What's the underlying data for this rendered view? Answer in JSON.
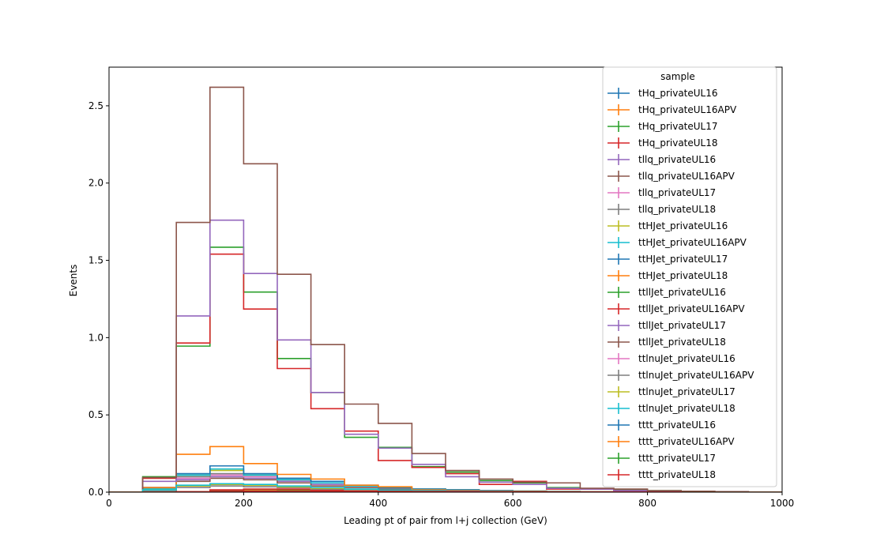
{
  "chart_data": {
    "type": "histogram-step",
    "xlabel": "Leading pt of pair from l+j collection (GeV)",
    "ylabel": "Events",
    "xlim": [
      0,
      1000
    ],
    "ylim": [
      0,
      2.75
    ],
    "xticks": [
      0,
      200,
      400,
      600,
      800,
      1000
    ],
    "xtick_labels": [
      "0",
      "200",
      "400",
      "600",
      "800",
      "1000"
    ],
    "yticks": [
      0,
      0.5,
      1.0,
      1.5,
      2.0,
      2.5
    ],
    "ytick_labels": [
      "0.0",
      "0.5",
      "1.0",
      "1.5",
      "2.0",
      "2.5"
    ],
    "grid": false,
    "legend": {
      "title": "sample",
      "placement": "top-right"
    },
    "bin_edges": [
      0,
      50,
      100,
      150,
      200,
      250,
      300,
      350,
      400,
      450,
      500,
      550,
      600,
      650,
      700,
      750,
      800,
      850,
      900,
      950,
      1000
    ],
    "series": [
      {
        "name": "tHq_privateUL16",
        "color": "#1f77b4",
        "values": [
          0,
          0,
          0,
          0.005,
          0.01,
          0.01,
          0.008,
          0.006,
          0.004,
          0.003,
          0.002,
          0.001,
          0.001,
          0,
          0,
          0,
          0,
          0,
          0,
          0
        ]
      },
      {
        "name": "tHq_privateUL16APV",
        "color": "#ff7f0e",
        "values": [
          0,
          0,
          0,
          0.005,
          0.01,
          0.01,
          0.008,
          0.006,
          0.004,
          0.003,
          0.002,
          0.001,
          0.001,
          0,
          0,
          0,
          0,
          0,
          0,
          0
        ]
      },
      {
        "name": "tHq_privateUL17",
        "color": "#2ca02c",
        "values": [
          0,
          0,
          0,
          0.01,
          0.018,
          0.016,
          0.012,
          0.01,
          0.007,
          0.005,
          0.003,
          0.002,
          0.001,
          0.001,
          0,
          0,
          0,
          0,
          0,
          0
        ]
      },
      {
        "name": "tHq_privateUL18",
        "color": "#d62728",
        "values": [
          0,
          0,
          0,
          0.015,
          0.02,
          0.02,
          0.015,
          0.012,
          0.009,
          0.006,
          0.004,
          0.002,
          0.002,
          0.001,
          0,
          0,
          0,
          0,
          0,
          0
        ]
      },
      {
        "name": "tllq_privateUL16",
        "color": "#9467bd",
        "values": [
          0,
          0.02,
          0.08,
          0.1,
          0.09,
          0.07,
          0.05,
          0.03,
          0.02,
          0.01,
          0.008,
          0.005,
          0.003,
          0.002,
          0.001,
          0,
          0,
          0,
          0,
          0
        ]
      },
      {
        "name": "tllq_privateUL16APV",
        "color": "#8c564b",
        "values": [
          0,
          0.02,
          0.07,
          0.09,
          0.08,
          0.06,
          0.04,
          0.03,
          0.02,
          0.01,
          0.007,
          0.004,
          0.003,
          0.002,
          0.001,
          0,
          0,
          0,
          0,
          0
        ]
      },
      {
        "name": "tllq_privateUL17",
        "color": "#e377c2",
        "values": [
          0,
          0.03,
          0.09,
          0.11,
          0.1,
          0.08,
          0.06,
          0.04,
          0.025,
          0.015,
          0.009,
          0.006,
          0.004,
          0.002,
          0.001,
          0,
          0,
          0,
          0,
          0
        ]
      },
      {
        "name": "tllq_privateUL18",
        "color": "#7f7f7f",
        "values": [
          0,
          0.03,
          0.1,
          0.12,
          0.11,
          0.09,
          0.06,
          0.04,
          0.025,
          0.015,
          0.01,
          0.006,
          0.004,
          0.002,
          0.001,
          0,
          0,
          0,
          0,
          0
        ]
      },
      {
        "name": "ttHJet_privateUL16",
        "color": "#bcbd22",
        "values": [
          0,
          0.02,
          0.11,
          0.14,
          0.11,
          0.08,
          0.06,
          0.04,
          0.03,
          0.02,
          0.015,
          0.01,
          0.007,
          0.004,
          0.003,
          0.002,
          0.001,
          0,
          0,
          0
        ]
      },
      {
        "name": "ttHJet_privateUL16APV",
        "color": "#17becf",
        "values": [
          0,
          0.02,
          0.11,
          0.15,
          0.11,
          0.08,
          0.06,
          0.04,
          0.03,
          0.02,
          0.015,
          0.01,
          0.007,
          0.004,
          0.003,
          0.002,
          0.001,
          0,
          0,
          0
        ]
      },
      {
        "name": "ttHJet_privateUL17",
        "color": "#1f77b4",
        "values": [
          0,
          0.03,
          0.12,
          0.17,
          0.12,
          0.09,
          0.07,
          0.045,
          0.03,
          0.02,
          0.015,
          0.01,
          0.007,
          0.004,
          0.003,
          0.002,
          0.001,
          0,
          0,
          0
        ]
      },
      {
        "name": "ttHJet_privateUL18",
        "color": "#ff7f0e",
        "values": [
          0,
          0.03,
          0.245,
          0.295,
          0.185,
          0.115,
          0.085,
          0.045,
          0.035,
          0.015,
          0.01,
          0.007,
          0.005,
          0.003,
          0.002,
          0.001,
          0.001,
          0,
          0,
          0
        ]
      },
      {
        "name": "ttllJet_privateUL16",
        "color": "#2ca02c",
        "values": [
          0,
          0.1,
          0.945,
          1.585,
          1.295,
          0.865,
          0.645,
          0.355,
          0.29,
          0.165,
          0.13,
          0.075,
          0.06,
          0.03,
          0.02,
          0.015,
          0.01,
          0.005,
          0.003,
          0.001
        ]
      },
      {
        "name": "ttllJet_privateUL16APV",
        "color": "#d62728",
        "values": [
          0,
          0.09,
          0.965,
          1.54,
          1.185,
          0.8,
          0.54,
          0.395,
          0.205,
          0.16,
          0.12,
          0.05,
          0.07,
          0.02,
          0.02,
          0.01,
          0.008,
          0.004,
          0.002,
          0.001
        ]
      },
      {
        "name": "ttllJet_privateUL17",
        "color": "#9467bd",
        "values": [
          0,
          0.07,
          1.14,
          1.76,
          1.415,
          0.985,
          0.645,
          0.375,
          0.285,
          0.18,
          0.1,
          0.065,
          0.05,
          0.025,
          0.02,
          0.01,
          0.008,
          0.004,
          0.002,
          0.001
        ]
      },
      {
        "name": "ttllJet_privateUL18",
        "color": "#8c564b",
        "values": [
          0,
          0.095,
          1.745,
          2.62,
          2.125,
          1.41,
          0.955,
          0.57,
          0.445,
          0.25,
          0.14,
          0.085,
          0.065,
          0.06,
          0.025,
          0.02,
          0.01,
          0.006,
          0.003,
          0.001
        ]
      },
      {
        "name": "ttlnuJet_privateUL16",
        "color": "#e377c2",
        "values": [
          0,
          0.01,
          0.03,
          0.04,
          0.035,
          0.03,
          0.02,
          0.015,
          0.01,
          0.008,
          0.005,
          0.004,
          0.003,
          0.002,
          0.001,
          0,
          0,
          0,
          0,
          0
        ]
      },
      {
        "name": "ttlnuJet_privateUL16APV",
        "color": "#7f7f7f",
        "values": [
          0,
          0.01,
          0.03,
          0.04,
          0.035,
          0.03,
          0.02,
          0.015,
          0.01,
          0.008,
          0.005,
          0.004,
          0.003,
          0.002,
          0.001,
          0,
          0,
          0,
          0,
          0
        ]
      },
      {
        "name": "ttlnuJet_privateUL17",
        "color": "#bcbd22",
        "values": [
          0,
          0.015,
          0.04,
          0.05,
          0.045,
          0.035,
          0.025,
          0.018,
          0.012,
          0.009,
          0.006,
          0.004,
          0.003,
          0.002,
          0.001,
          0,
          0,
          0,
          0,
          0
        ]
      },
      {
        "name": "ttlnuJet_privateUL18",
        "color": "#17becf",
        "values": [
          0,
          0.015,
          0.045,
          0.055,
          0.05,
          0.04,
          0.03,
          0.02,
          0.013,
          0.01,
          0.007,
          0.005,
          0.003,
          0.002,
          0.001,
          0,
          0,
          0,
          0,
          0
        ]
      },
      {
        "name": "tttt_privateUL16",
        "color": "#1f77b4",
        "values": [
          0,
          0,
          0.002,
          0.004,
          0.005,
          0.005,
          0.005,
          0.004,
          0.004,
          0.003,
          0.003,
          0.002,
          0.002,
          0.001,
          0.001,
          0.001,
          0,
          0,
          0,
          0
        ]
      },
      {
        "name": "tttt_privateUL16APV",
        "color": "#ff7f0e",
        "values": [
          0,
          0,
          0.002,
          0.004,
          0.005,
          0.005,
          0.005,
          0.004,
          0.004,
          0.003,
          0.003,
          0.002,
          0.002,
          0.001,
          0.001,
          0.001,
          0,
          0,
          0,
          0
        ]
      },
      {
        "name": "tttt_privateUL17",
        "color": "#2ca02c",
        "values": [
          0,
          0,
          0.002,
          0.004,
          0.006,
          0.006,
          0.006,
          0.005,
          0.005,
          0.004,
          0.003,
          0.003,
          0.002,
          0.002,
          0.001,
          0.001,
          0.001,
          0,
          0,
          0
        ]
      },
      {
        "name": "tttt_privateUL18",
        "color": "#d62728",
        "values": [
          0,
          0,
          0.003,
          0.005,
          0.006,
          0.007,
          0.006,
          0.006,
          0.005,
          0.004,
          0.004,
          0.003,
          0.002,
          0.002,
          0.001,
          0.001,
          0.001,
          0,
          0,
          0
        ]
      }
    ]
  }
}
